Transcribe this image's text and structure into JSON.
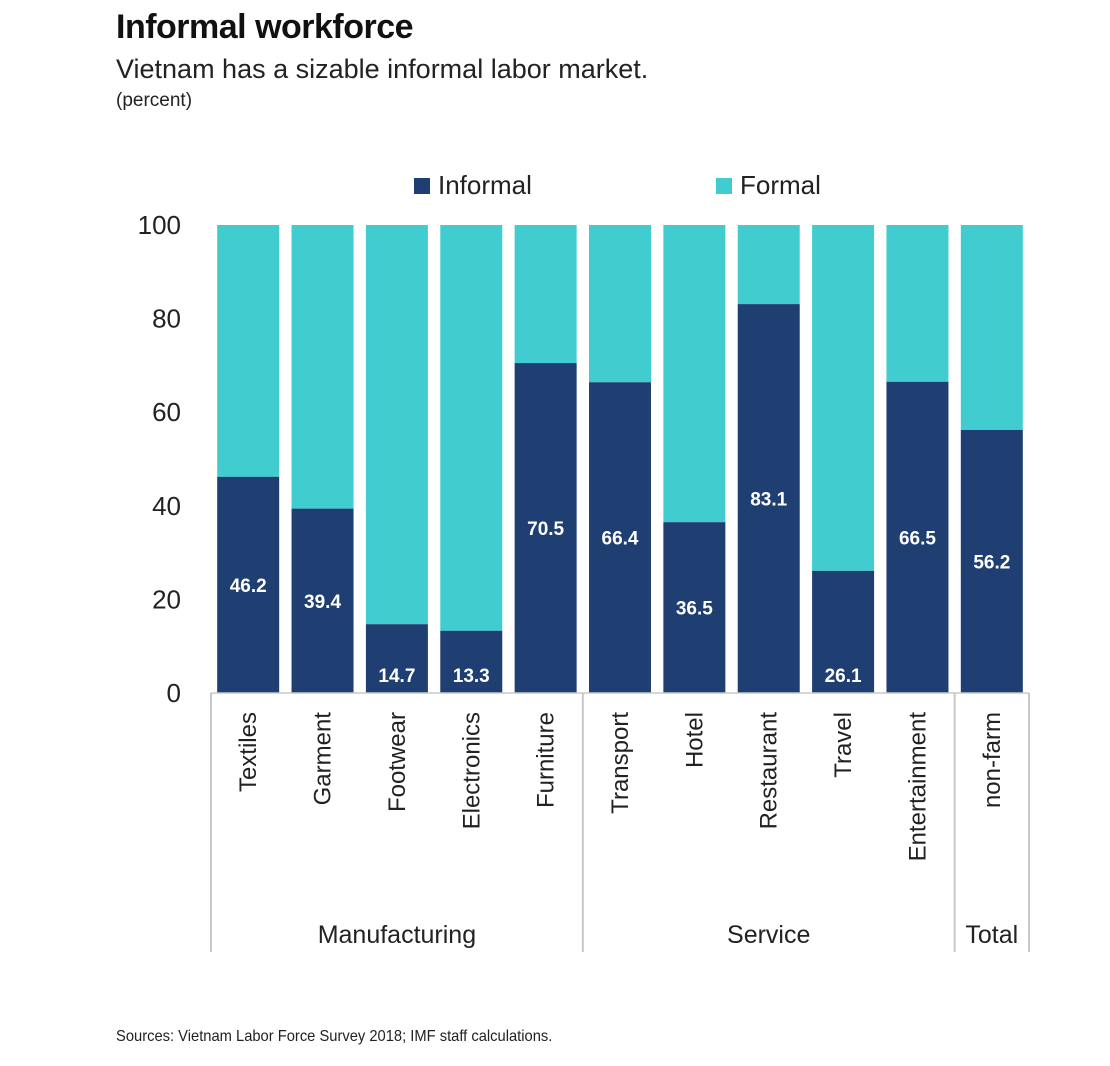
{
  "title": "Informal workforce",
  "subtitle": "Vietnam has a sizable informal labor market.",
  "unit": "(percent)",
  "source": "Sources: Vietnam Labor Force Survey 2018; IMF staff calculations.",
  "colors": {
    "informal": "#1f3f73",
    "formal": "#41cdcf",
    "label": "#ffffff",
    "axis": "#c8c8c8"
  },
  "chart_data": {
    "type": "bar",
    "stacked": true,
    "categories": [
      "Textiles",
      "Garment",
      "Footwear",
      "Electronics",
      "Furniture",
      "Transport",
      "Hotel",
      "Restaurant",
      "Travel",
      "Entertainment",
      "non-farm"
    ],
    "groups": [
      {
        "name": "Manufacturing",
        "categories": [
          "Textiles",
          "Garment",
          "Footwear",
          "Electronics",
          "Furniture"
        ]
      },
      {
        "name": "Service",
        "categories": [
          "Transport",
          "Hotel",
          "Restaurant",
          "Travel",
          "Entertainment"
        ]
      },
      {
        "name": "Total",
        "categories": [
          "non-farm"
        ]
      }
    ],
    "series": [
      {
        "name": "Informal",
        "values": [
          46.2,
          39.4,
          14.7,
          13.3,
          70.5,
          66.4,
          36.5,
          83.1,
          26.1,
          66.5,
          56.2
        ]
      },
      {
        "name": "Formal",
        "values": [
          53.8,
          60.6,
          85.3,
          86.7,
          29.5,
          33.6,
          63.5,
          16.9,
          73.9,
          33.5,
          43.8
        ]
      }
    ],
    "data_labels": [
      "46.2",
      "39.4",
      "14.7",
      "13.3",
      "70.5",
      "66.4",
      "36.5",
      "83.1",
      "26.1",
      "66.5",
      "56.2"
    ],
    "yticks": [
      "0",
      "20",
      "40",
      "60",
      "80",
      "100"
    ],
    "ylim": [
      0,
      100
    ],
    "grid": false,
    "legend": "top-center"
  }
}
